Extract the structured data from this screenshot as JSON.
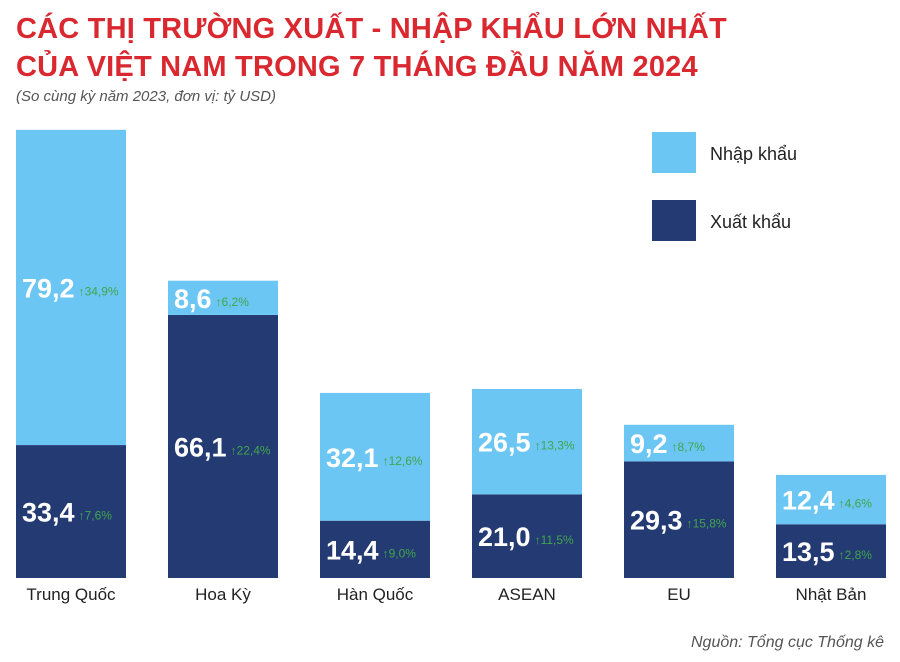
{
  "header": {
    "title_line1": "CÁC THỊ TRƯỜNG XUẤT - NHẬP KHẨU LỚN NHẤT",
    "title_line2": "CỦA VIỆT NAM TRONG 7 THÁNG ĐẦU NĂM 2024",
    "subtitle": "(So cùng kỳ năm 2023, đơn vị: tỷ USD)"
  },
  "source": "Nguồn: Tổng cục Thống kê",
  "colors": {
    "import": "#6cc6f4",
    "export": "#243a73",
    "growth": "#3fa64a",
    "title": "#d9282f"
  },
  "chart_data": {
    "type": "bar",
    "stacked": true,
    "categories": [
      "Trung Quốc",
      "Hoa Kỳ",
      "Hàn Quốc",
      "ASEAN",
      "EU",
      "Nhật Bản"
    ],
    "series": [
      {
        "name": "Xuất khẩu",
        "values": [
          33.4,
          66.1,
          14.4,
          21.0,
          29.3,
          13.5
        ],
        "labels": [
          "33,4",
          "66,1",
          "14,4",
          "21,0",
          "29,3",
          "13,5"
        ],
        "growth": [
          "7,6%",
          "22,4%",
          "9,0%",
          "11,5%",
          "15,8%",
          "2,8%"
        ]
      },
      {
        "name": "Nhập khẩu",
        "values": [
          79.2,
          8.6,
          32.1,
          26.5,
          9.2,
          12.4
        ],
        "labels": [
          "79,2",
          "8,6",
          "32,1",
          "26,5",
          "9,2",
          "12,4"
        ],
        "growth": [
          "34,9%",
          "6,2%",
          "12,6%",
          "13,3%",
          "8,7%",
          "4,6%"
        ]
      }
    ],
    "legend_position": "top-right",
    "growth_marker": "↑",
    "grid": false
  }
}
